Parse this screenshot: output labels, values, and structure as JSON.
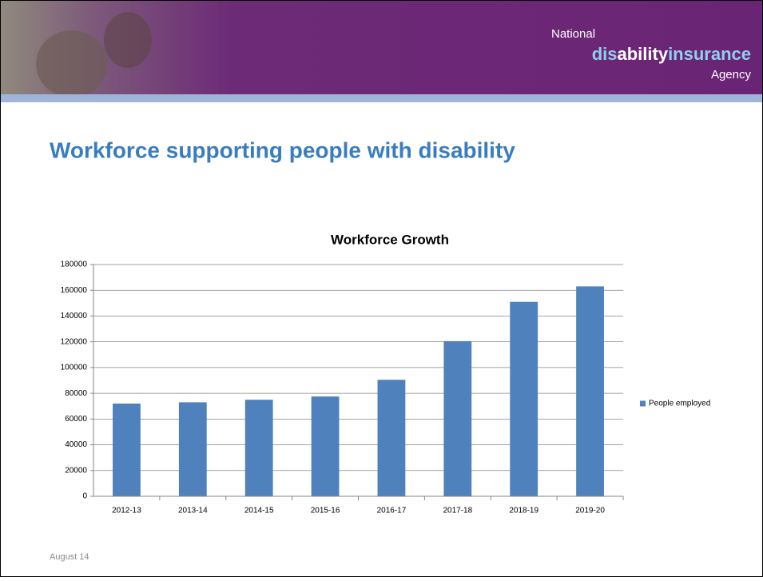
{
  "slide": {
    "logo": {
      "top": "National",
      "dis": "dis",
      "ability": "ability",
      "insurance": "insurance",
      "bottom": "Agency"
    },
    "title": "Workforce supporting people with disability",
    "footer": "August 14"
  },
  "chart_data": {
    "type": "bar",
    "title": "Workforce Growth",
    "categories": [
      "2012-13",
      "2013-14",
      "2014-15",
      "2015-16",
      "2016-17",
      "2017-18",
      "2018-19",
      "2019-20"
    ],
    "series": [
      {
        "name": "People employed",
        "color": "#4f81bd",
        "values": [
          72000,
          73000,
          75000,
          77500,
          90500,
          120500,
          151000,
          163000
        ]
      }
    ],
    "ylim": [
      0,
      180000
    ],
    "yticks": [
      0,
      20000,
      40000,
      60000,
      80000,
      100000,
      120000,
      140000,
      160000,
      180000
    ],
    "grid": true,
    "legend": "right"
  }
}
